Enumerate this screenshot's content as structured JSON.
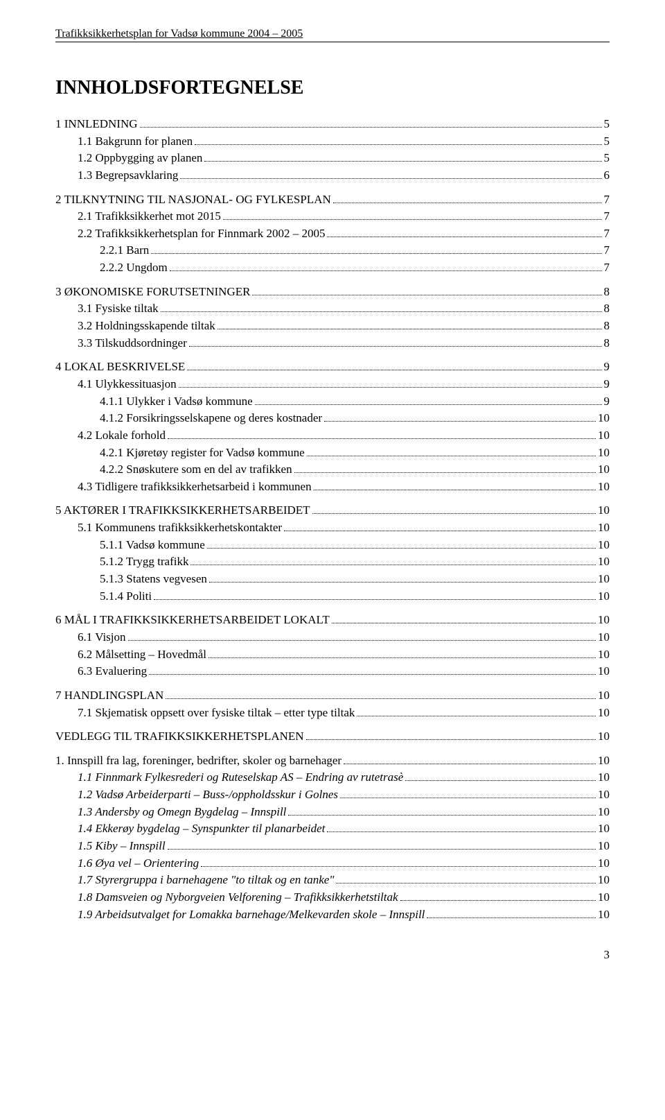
{
  "header": "Trafikksikkerhetsplan for Vadsø kommune 2004 – 2005",
  "title": "INNHOLDSFORTEGNELSE",
  "footer_page": "3",
  "toc": [
    {
      "level": 0,
      "label": "1   INNLEDNING",
      "page": "5"
    },
    {
      "level": 1,
      "label": "1.1   Bakgrunn for planen",
      "page": "5"
    },
    {
      "level": 1,
      "label": "1.2   Oppbygging av planen",
      "page": "5"
    },
    {
      "level": 1,
      "label": "1.3   Begrepsavklaring",
      "page": "6"
    },
    {
      "level": 0,
      "label": "2   TILKNYTNING TIL NASJONAL- OG FYLKESPLAN",
      "page": "7"
    },
    {
      "level": 1,
      "label": "2.1   Trafikksikkerhet mot 2015",
      "page": "7"
    },
    {
      "level": 1,
      "label": "2.2   Trafikksikkerhetsplan for Finnmark 2002 – 2005",
      "page": "7"
    },
    {
      "level": 2,
      "label": "2.2.1    Barn",
      "page": "7"
    },
    {
      "level": 2,
      "label": "2.2.2    Ungdom",
      "page": "7"
    },
    {
      "level": 0,
      "label": "3   ØKONOMISKE FORUTSETNINGER",
      "page": "8"
    },
    {
      "level": 1,
      "label": "3.1   Fysiske tiltak",
      "page": "8"
    },
    {
      "level": 1,
      "label": "3.2   Holdningsskapende tiltak",
      "page": "8"
    },
    {
      "level": 1,
      "label": "3.3   Tilskuddsordninger",
      "page": "8"
    },
    {
      "level": 0,
      "label": "4   LOKAL BESKRIVELSE",
      "page": "9"
    },
    {
      "level": 1,
      "label": "4.1   Ulykkessituasjon",
      "page": "9"
    },
    {
      "level": 2,
      "label": "4.1.1    Ulykker i Vadsø kommune",
      "page": "9"
    },
    {
      "level": 2,
      "label": "4.1.2    Forsikringsselskapene og deres kostnader",
      "page": "10"
    },
    {
      "level": 1,
      "label": "4.2   Lokale forhold",
      "page": "10"
    },
    {
      "level": 2,
      "label": "4.2.1    Kjøretøy register for Vadsø kommune",
      "page": "10"
    },
    {
      "level": 2,
      "label": "4.2.2    Snøskutere som en del av trafikken",
      "page": "10"
    },
    {
      "level": 1,
      "label": "4.3   Tidligere trafikksikkerhetsarbeid i kommunen",
      "page": "10"
    },
    {
      "level": 0,
      "label": "5   AKTØRER I TRAFIKKSIKKERHETSARBEIDET",
      "page": "10"
    },
    {
      "level": 1,
      "label": "5.1   Kommunens trafikksikkerhetskontakter",
      "page": "10"
    },
    {
      "level": 2,
      "label": "5.1.1    Vadsø kommune",
      "page": "10"
    },
    {
      "level": 2,
      "label": "5.1.2    Trygg trafikk",
      "page": "10"
    },
    {
      "level": 2,
      "label": "5.1.3    Statens vegvesen",
      "page": "10"
    },
    {
      "level": 2,
      "label": "5.1.4    Politi",
      "page": "10"
    },
    {
      "level": 0,
      "label": "6   MÅL I TRAFIKKSIKKERHETSARBEIDET LOKALT",
      "page": "10"
    },
    {
      "level": 1,
      "label": "6.1   Visjon",
      "page": "10"
    },
    {
      "level": 1,
      "label": "6.2   Målsetting – Hovedmål",
      "page": "10"
    },
    {
      "level": 1,
      "label": "6.3   Evaluering",
      "page": "10"
    },
    {
      "level": 0,
      "label": "7   HANDLINGSPLAN",
      "page": "10"
    },
    {
      "level": 1,
      "label": "7.1   Skjematisk oppsett over fysiske tiltak – etter type tiltak",
      "page": "10"
    },
    {
      "level": 0,
      "label": "VEDLEGG TIL TRAFIKKSIKKERHETSPLANEN",
      "page": "10"
    },
    {
      "level": 0,
      "label": "1.   Innspill fra lag, foreninger, bedrifter, skoler og barnehager",
      "page": "10"
    },
    {
      "level": 1,
      "italic": true,
      "label": "1.1   Finnmark Fylkesrederi og Ruteselskap AS – Endring av rutetrasè",
      "page": "10"
    },
    {
      "level": 1,
      "italic": true,
      "label": "1.2   Vadsø Arbeiderparti – Buss-/oppholdsskur i Golnes",
      "page": "10"
    },
    {
      "level": 1,
      "italic": true,
      "label": "1.3   Andersby og Omegn Bygdelag – Innspill",
      "page": "10"
    },
    {
      "level": 1,
      "italic": true,
      "label": "1.4   Ekkerøy bygdelag – Synspunkter til planarbeidet",
      "page": "10"
    },
    {
      "level": 1,
      "italic": true,
      "label": "1.5   Kiby – Innspill",
      "page": "10"
    },
    {
      "level": 1,
      "italic": true,
      "label": "1.6   Øya vel – Orientering",
      "page": "10"
    },
    {
      "level": 1,
      "italic": true,
      "label": "1.7   Styrergruppa i barnehagene \"to tiltak og en tanke\"",
      "page": "10"
    },
    {
      "level": 1,
      "italic": true,
      "label": "1.8   Damsveien og Nyborgveien Velforening – Trafikksikkerhetstiltak",
      "page": "10"
    },
    {
      "level": 1,
      "italic": true,
      "label": "1.9   Arbeidsutvalget for Lomakka barnehage/Melkevarden skole – Innspill",
      "page": "10"
    }
  ]
}
